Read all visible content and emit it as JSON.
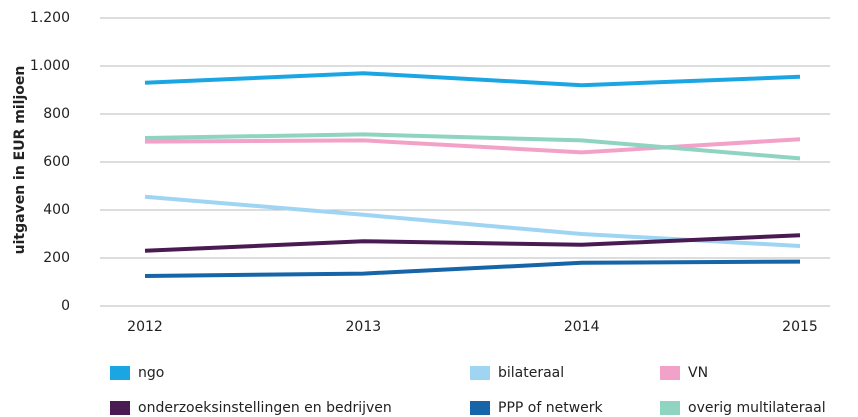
{
  "chart_data": {
    "type": "line",
    "y_label": "uitgaven in EUR miljoen",
    "categories": [
      "2012",
      "2013",
      "2014",
      "2015"
    ],
    "ylim": [
      0,
      1200
    ],
    "yticks": [
      0,
      200,
      400,
      600,
      800,
      {
        "value": 1000,
        "label": "1.000"
      },
      {
        "value": 1200,
        "label": "1.200"
      }
    ],
    "grid": true,
    "series": [
      {
        "name": "ngo",
        "color": "#1ba6e3",
        "values": [
          930,
          970,
          920,
          955
        ]
      },
      {
        "name": "bilateraal",
        "color": "#9fd4f3",
        "values": [
          455,
          380,
          300,
          250
        ]
      },
      {
        "name": "VN",
        "color": "#f2a2c9",
        "values": [
          685,
          690,
          640,
          695
        ]
      },
      {
        "name": "onderzoeksinstellingen en bedrijven",
        "color": "#4a1a52",
        "values": [
          230,
          270,
          255,
          295
        ]
      },
      {
        "name": "PPP of netwerk",
        "color": "#1565a8",
        "values": [
          125,
          135,
          180,
          185
        ]
      },
      {
        "name": "overig multilateraal",
        "color": "#8fd3c1",
        "values": [
          700,
          715,
          690,
          615
        ]
      }
    ]
  }
}
